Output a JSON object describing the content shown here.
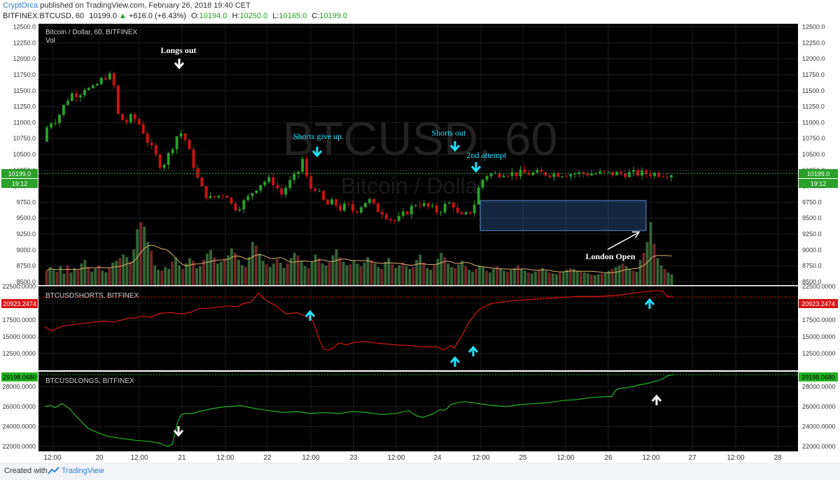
{
  "header": {
    "author": "CryptOrca",
    "published": "published on TradingView.com, February 26, 2018 19:40 CET",
    "symbol": "BITFINEX:BTCUSD, 60",
    "last": "10199.0",
    "change": "+616.0 (+6.43%)",
    "ohlc_o_label": "O:",
    "ohlc_o": "10194.0",
    "ohlc_h_label": "H:",
    "ohlc_h": "10250.0",
    "ohlc_l_label": "L:",
    "ohlc_l": "10165.0",
    "ohlc_c_label": "C:",
    "ohlc_c": "10199.0"
  },
  "footer": {
    "created": "Created with",
    "brand": "TradingView"
  },
  "colors": {
    "up": "#2aa02a",
    "down": "#cc1111",
    "background": "#000000",
    "shorts": "#d81414",
    "longs": "#22b322",
    "annotation": "#22e0ff",
    "box": "#3d6fb5"
  },
  "watermark": {
    "symbol": "BTCUSD, 60",
    "name": "Bitcoin / Dollar"
  },
  "chart_data": [
    {
      "type": "candlestick",
      "title": "Bitcoin / Dollar, 60, BITFINEX",
      "subtitle": "Vol",
      "y_ticks": [
        "12500.0",
        "12250.0",
        "12000.0",
        "11750.0",
        "11500.0",
        "11250.0",
        "11000.0",
        "10750.0",
        "10500.0",
        "10250.0",
        "10000.0",
        "9750.0",
        "9500.0",
        "9250.0",
        "9000.0",
        "8750.0",
        "8500.0"
      ],
      "ylim": [
        8450,
        12550
      ],
      "last_price": "10199.0",
      "countdown": "19:12",
      "close_path": [
        [
          0,
          10700
        ],
        [
          8,
          11000
        ],
        [
          20,
          11050
        ],
        [
          32,
          11300
        ],
        [
          40,
          11450
        ],
        [
          52,
          11450
        ],
        [
          60,
          11550
        ],
        [
          70,
          11500
        ],
        [
          82,
          11650
        ],
        [
          92,
          11750
        ],
        [
          100,
          11700
        ],
        [
          108,
          11100
        ],
        [
          118,
          11000
        ],
        [
          128,
          11100
        ],
        [
          140,
          10950
        ],
        [
          150,
          10700
        ],
        [
          160,
          10500
        ],
        [
          170,
          10300
        ],
        [
          180,
          10500
        ],
        [
          192,
          10800
        ],
        [
          200,
          10850
        ],
        [
          212,
          10450
        ],
        [
          222,
          10100
        ],
        [
          230,
          9900
        ],
        [
          240,
          9800
        ],
        [
          250,
          9850
        ],
        [
          262,
          9900
        ],
        [
          272,
          9650
        ],
        [
          282,
          9700
        ],
        [
          292,
          9800
        ],
        [
          302,
          9950
        ],
        [
          312,
          10050
        ],
        [
          322,
          10100
        ],
        [
          332,
          10050
        ],
        [
          340,
          9850
        ],
        [
          348,
          10000
        ],
        [
          356,
          10100
        ],
        [
          364,
          10200
        ],
        [
          372,
          10450
        ],
        [
          380,
          9950
        ],
        [
          388,
          10000
        ],
        [
          396,
          9850
        ],
        [
          405,
          9700
        ],
        [
          415,
          9750
        ],
        [
          425,
          9650
        ],
        [
          435,
          9700
        ],
        [
          445,
          9600
        ],
        [
          455,
          9700
        ],
        [
          465,
          9800
        ],
        [
          475,
          9650
        ],
        [
          485,
          9600
        ],
        [
          495,
          9500
        ],
        [
          505,
          9450
        ],
        [
          515,
          9550
        ],
        [
          525,
          9650
        ],
        [
          535,
          9750
        ],
        [
          545,
          9700
        ],
        [
          555,
          9650
        ],
        [
          565,
          9600
        ],
        [
          575,
          9700
        ],
        [
          585,
          9750
        ],
        [
          595,
          9500
        ],
        [
          605,
          9550
        ],
        [
          615,
          9650
        ],
        [
          620,
          9900
        ],
        [
          628,
          10100
        ],
        [
          636,
          10200
        ],
        [
          644,
          10180
        ],
        [
          652,
          10200
        ],
        [
          660,
          10230
        ],
        [
          668,
          10200
        ]
      ],
      "volume_bars": [
        16,
        20,
        17,
        15,
        21,
        13,
        22,
        14,
        19,
        17,
        24,
        28,
        20,
        15,
        18,
        22,
        16,
        14,
        19,
        25,
        27,
        30,
        34,
        31,
        26,
        40,
        62,
        70,
        65,
        48,
        38,
        22,
        17,
        16,
        20,
        18,
        26,
        31,
        22,
        18,
        24,
        30,
        27,
        19,
        21,
        28,
        35,
        39,
        31,
        24,
        26,
        30,
        33,
        41,
        36,
        28,
        22,
        20,
        31,
        48,
        44,
        35,
        27,
        23,
        20,
        24,
        29,
        25,
        19,
        24,
        30,
        36,
        33,
        27,
        21,
        19,
        26,
        34,
        30,
        24,
        22,
        25,
        33,
        40,
        31,
        26,
        22,
        23,
        27,
        24,
        21,
        25,
        31,
        28,
        24,
        20,
        18,
        26,
        30,
        23,
        19,
        22,
        25,
        21,
        18,
        20,
        28,
        34,
        25,
        19,
        17,
        22,
        29,
        36,
        31,
        24,
        20,
        19,
        23,
        27,
        21,
        17,
        15,
        18,
        22,
        20,
        16,
        14,
        18,
        21,
        19,
        16,
        15,
        17,
        19,
        22,
        18,
        16,
        14,
        13,
        15,
        17,
        19,
        16,
        14,
        13,
        12,
        14,
        15,
        17,
        19,
        18,
        16,
        15,
        14,
        13,
        12,
        11,
        12,
        13,
        14,
        16,
        18,
        20,
        22,
        24,
        21,
        18,
        16,
        15,
        28,
        36,
        48,
        70,
        46,
        30,
        22,
        18,
        14,
        12
      ]
    },
    {
      "type": "line",
      "title": "BTCUSDSHORTS, BITFINEX",
      "series": [
        {
          "name": "BTCUSDSHORTS",
          "color": "#d81414"
        }
      ],
      "y_ticks": [
        "22500.0000",
        "20000.0000",
        "17500.0000",
        "15000.0000",
        "12500.0000"
      ],
      "ylim": [
        10000,
        22500
      ],
      "last_value": "20923.2474",
      "x": [
        0,
        10,
        25,
        40,
        55,
        70,
        85,
        100,
        110,
        120,
        130,
        140,
        150,
        165,
        180,
        195,
        210,
        220,
        240,
        260,
        275,
        285,
        295,
        305,
        315,
        330,
        345,
        360,
        372,
        382,
        388,
        392,
        398,
        405,
        412,
        420,
        430,
        445,
        460,
        470,
        480,
        500,
        520,
        540,
        560,
        570,
        580,
        585,
        590,
        595,
        600,
        605,
        612,
        620,
        630,
        640,
        655,
        670,
        700,
        730,
        760,
        790,
        820,
        840,
        855,
        865,
        875,
        882,
        890,
        898
      ],
      "values": [
        16500,
        15900,
        16600,
        16800,
        17000,
        17200,
        17300,
        17200,
        17500,
        17800,
        17800,
        18100,
        17900,
        18500,
        18600,
        18400,
        18700,
        19200,
        19300,
        19600,
        19500,
        20000,
        20200,
        21500,
        20500,
        19600,
        18400,
        18600,
        18100,
        17500,
        16000,
        14600,
        13200,
        13000,
        13300,
        14100,
        13800,
        14200,
        14300,
        14100,
        14000,
        13800,
        13700,
        13500,
        13500,
        13000,
        13700,
        13300,
        14300,
        15000,
        16000,
        17000,
        18000,
        19000,
        19600,
        20000,
        20200,
        20400,
        20600,
        20800,
        21000,
        21000,
        21200,
        21500,
        21700,
        21800,
        21900,
        21800,
        21000,
        20923
      ]
    },
    {
      "type": "line",
      "title": "BTCUSDLONGS, BITFINEX",
      "series": [
        {
          "name": "BTCUSDLONGS",
          "color": "#22b322"
        }
      ],
      "y_ticks": [
        "28000.0000",
        "26000.0000",
        "24000.0000",
        "22000.0000"
      ],
      "ylim": [
        21500,
        29500
      ],
      "last_value": "29198.0680",
      "x": [
        0,
        8,
        15,
        25,
        35,
        45,
        55,
        62,
        75,
        90,
        110,
        130,
        150,
        165,
        175,
        182,
        190,
        195,
        200,
        210,
        220,
        240,
        260,
        280,
        300,
        320,
        340,
        360,
        380,
        400,
        420,
        440,
        460,
        480,
        500,
        520,
        530,
        540,
        555,
        565,
        570,
        575,
        580,
        590,
        600,
        620,
        640,
        660,
        680,
        700,
        720,
        740,
        760,
        780,
        800,
        810,
        815,
        820,
        830,
        840,
        850,
        860,
        870,
        880,
        890,
        898
      ],
      "values": [
        26000,
        26100,
        25900,
        26300,
        25800,
        25000,
        24300,
        23800,
        23400,
        23000,
        22800,
        22600,
        22500,
        22300,
        22000,
        22200,
        24500,
        25200,
        25300,
        25300,
        25500,
        25800,
        26000,
        26100,
        25800,
        25600,
        25400,
        25500,
        25300,
        25400,
        25300,
        25500,
        25400,
        25200,
        25300,
        25600,
        25100,
        24900,
        25300,
        25700,
        25600,
        25800,
        26200,
        26400,
        26500,
        26300,
        26100,
        26000,
        26200,
        26300,
        26400,
        26600,
        26700,
        26900,
        27000,
        27000,
        27600,
        27800,
        27900,
        28000,
        28200,
        28300,
        28500,
        28700,
        29100,
        29198
      ]
    }
  ],
  "x_axis": {
    "ticks": [
      {
        "label": "12:00",
        "x": 75
      },
      {
        "label": "20",
        "x": 142
      },
      {
        "label": "12:00",
        "x": 199
      },
      {
        "label": "21",
        "x": 260
      },
      {
        "label": "12:00",
        "x": 322
      },
      {
        "label": "22",
        "x": 382
      },
      {
        "label": "12:00",
        "x": 444
      },
      {
        "label": "23",
        "x": 505
      },
      {
        "label": "12:00",
        "x": 566
      },
      {
        "label": "24",
        "x": 625
      },
      {
        "label": "12:00",
        "x": 687
      },
      {
        "label": "25",
        "x": 747
      },
      {
        "label": "12:00",
        "x": 808
      },
      {
        "label": "26",
        "x": 869
      },
      {
        "label": "12:00",
        "x": 930
      },
      {
        "label": "27",
        "x": 989
      },
      {
        "label": "12:00",
        "x": 1051
      },
      {
        "label": "28",
        "x": 1111
      }
    ]
  },
  "annotations": [
    {
      "text": "Longs out"
    },
    {
      "text": "Shorts give up."
    },
    {
      "text": "Shorts out"
    },
    {
      "text": "2nd attempt"
    },
    {
      "text": "London Open"
    }
  ]
}
